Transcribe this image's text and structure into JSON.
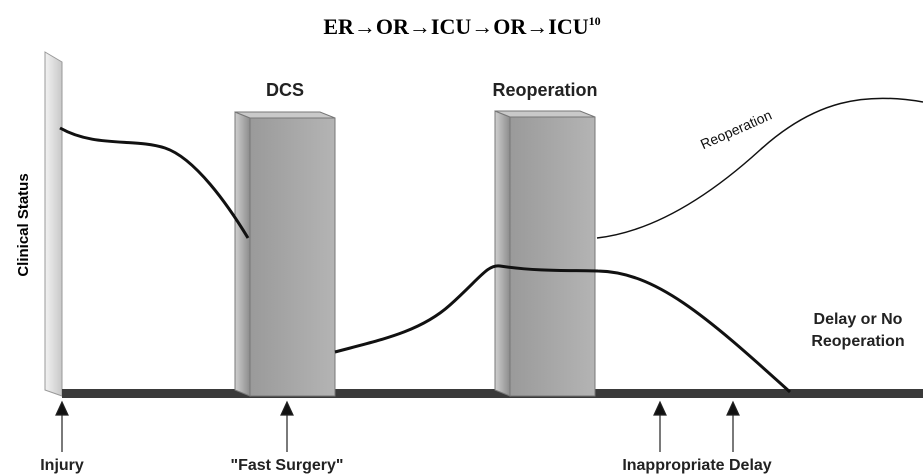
{
  "title": {
    "main": "ER→OR→ICU→OR→ICU",
    "superscript": "10"
  },
  "axis_label": "Clinical Status",
  "blocks": [
    {
      "label": "DCS"
    },
    {
      "label": "Reoperation"
    }
  ],
  "curve_labels": {
    "reoperation": "Reoperation",
    "delay": [
      "Delay or No",
      "Reoperation"
    ]
  },
  "events": [
    "Injury",
    "\"Fast Surgery\"",
    "Inappropriate Delay"
  ]
}
